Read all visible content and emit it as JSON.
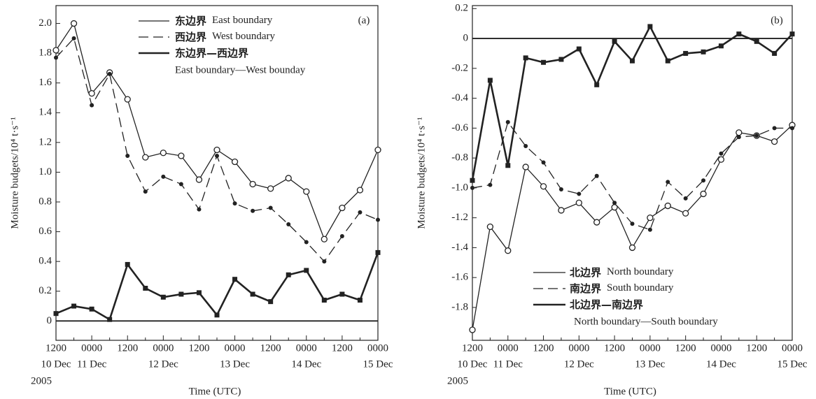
{
  "chart_data": [
    {
      "type": "line",
      "panel_label": "(a)",
      "xlabel": "Time (UTC)",
      "ylabel": "Moisture budgets/10⁴ t·s⁻¹",
      "categories": [
        "1200",
        null,
        "0000",
        null,
        "1200",
        null,
        "0000",
        null,
        "1200",
        null,
        "0000",
        null,
        "1200",
        null,
        "0000",
        null,
        "1200",
        null,
        "0000"
      ],
      "dates": [
        "10 Dec",
        null,
        "11 Dec",
        null,
        null,
        null,
        "12 Dec",
        null,
        null,
        null,
        "13 Dec",
        null,
        null,
        null,
        "14 Dec",
        null,
        null,
        null,
        "15 Dec"
      ],
      "year": "2005",
      "ylim": [
        -0.13,
        2.12
      ],
      "yticks": [
        0,
        0.2,
        0.4,
        0.6,
        0.8,
        {
          "value": 1,
          "label": "1.0"
        },
        1.2,
        1.4,
        1.6,
        1.8,
        {
          "value": 2,
          "label": "2.0"
        }
      ],
      "zero_line": true,
      "color": "#222222",
      "series": [
        {
          "name": "东边界",
          "name_en": "East boundary",
          "style": "solid",
          "marker": "circle-open",
          "line_width": 1.3,
          "values": [
            1.82,
            2.0,
            1.53,
            1.67,
            1.49,
            1.1,
            1.13,
            1.11,
            0.95,
            1.15,
            1.07,
            0.92,
            0.89,
            0.96,
            0.87,
            0.55,
            0.76,
            0.88,
            1.15
          ]
        },
        {
          "name": "西边界",
          "name_en": "West boundary",
          "style": "dashed",
          "marker": "dot",
          "line_width": 1.3,
          "values": [
            1.77,
            1.9,
            1.45,
            1.66,
            1.11,
            0.87,
            0.97,
            0.92,
            0.75,
            1.11,
            0.79,
            0.74,
            0.76,
            0.65,
            0.53,
            0.4,
            0.57,
            0.73,
            0.68
          ]
        },
        {
          "name": "东边界—西边界",
          "name_en": "East boundary—West bounday",
          "style": "solid",
          "marker": "square",
          "line_width": 2.6,
          "values": [
            0.05,
            0.1,
            0.08,
            0.01,
            0.38,
            0.22,
            0.16,
            0.18,
            0.19,
            0.04,
            0.28,
            0.18,
            0.13,
            0.31,
            0.34,
            0.14,
            0.18,
            0.14,
            0.46
          ]
        }
      ]
    },
    {
      "type": "line",
      "panel_label": "(b)",
      "xlabel": "Time (UTC)",
      "ylabel": "Moisture budgets/10⁴ t·s⁻¹",
      "categories": [
        "1200",
        null,
        "0000",
        null,
        "1200",
        null,
        "0000",
        null,
        "1200",
        null,
        "0000",
        null,
        "1200",
        null,
        "0000",
        null,
        "1200",
        null,
        "0000"
      ],
      "dates": [
        "10 Dec",
        null,
        "11 Dec",
        null,
        null,
        null,
        "12 Dec",
        null,
        null,
        null,
        "13 Dec",
        null,
        null,
        null,
        "14 Dec",
        null,
        null,
        null,
        "15 Dec"
      ],
      "year": "2005",
      "ylim": [
        -2.02,
        0.22
      ],
      "yticks": [
        0.2,
        0,
        -0.2,
        -0.4,
        -0.6,
        -0.8,
        {
          "value": -1,
          "label": "-1.0"
        },
        -1.2,
        -1.4,
        -1.6,
        -1.8
      ],
      "zero_line": true,
      "color": "#222222",
      "series": [
        {
          "name": "北边界",
          "name_en": "North boundary",
          "style": "solid",
          "marker": "circle-open",
          "line_width": 1.3,
          "values": [
            -1.95,
            -1.26,
            -1.42,
            -0.86,
            -0.99,
            -1.15,
            -1.1,
            -1.23,
            -1.13,
            -1.4,
            -1.2,
            -1.12,
            -1.17,
            -1.04,
            -0.81,
            -0.63,
            -0.65,
            -0.69,
            -0.58
          ]
        },
        {
          "name": "南边界",
          "name_en": "South boundary",
          "style": "dashed",
          "marker": "dot",
          "line_width": 1.3,
          "values": [
            -1.0,
            -0.98,
            -0.56,
            -0.72,
            -0.83,
            -1.01,
            -1.04,
            -0.92,
            -1.1,
            -1.24,
            -1.28,
            -0.96,
            -1.07,
            -0.95,
            -0.77,
            -0.66,
            -0.65,
            -0.6,
            -0.6
          ]
        },
        {
          "name": "北边界—南边界",
          "name_en": "North boundary—South boundary",
          "style": "solid",
          "marker": "square",
          "line_width": 2.6,
          "values": [
            -0.95,
            -0.28,
            -0.85,
            -0.13,
            -0.16,
            -0.14,
            -0.07,
            -0.31,
            -0.02,
            -0.15,
            0.08,
            -0.15,
            -0.1,
            -0.09,
            -0.05,
            0.03,
            -0.02,
            -0.1,
            0.03
          ]
        }
      ]
    }
  ]
}
